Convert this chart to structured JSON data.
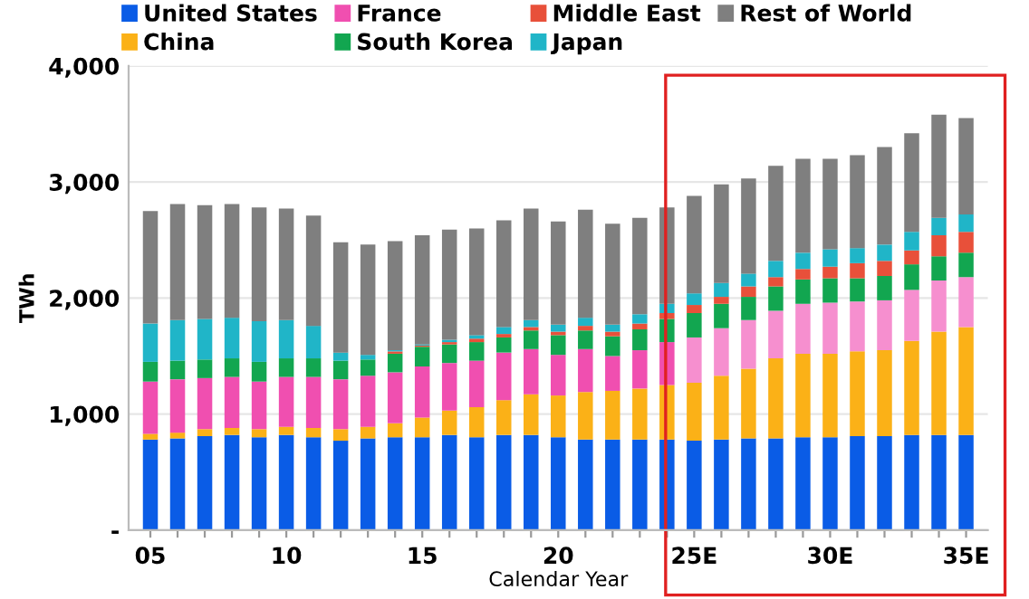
{
  "chart_data": {
    "type": "bar",
    "stacked": true,
    "xlabel": "Calendar Year",
    "ylabel": "TWh",
    "categories": [
      "05",
      null,
      null,
      null,
      null,
      "10",
      null,
      null,
      null,
      null,
      "15",
      null,
      null,
      null,
      null,
      "20",
      null,
      null,
      null,
      null,
      "25E",
      null,
      null,
      null,
      null,
      "30E",
      null,
      null,
      null,
      null,
      "35E"
    ],
    "series": [
      {
        "name": "United States",
        "color": "#0a5ce6",
        "values": [
          780,
          790,
          810,
          820,
          800,
          820,
          800,
          770,
          790,
          800,
          800,
          820,
          800,
          820,
          820,
          800,
          780,
          780,
          780,
          780,
          770,
          780,
          790,
          790,
          800,
          800,
          810,
          810,
          820,
          820,
          820
        ]
      },
      {
        "name": "China",
        "color": "#fbb117",
        "values": [
          50,
          50,
          60,
          60,
          70,
          70,
          80,
          100,
          100,
          120,
          170,
          210,
          260,
          300,
          350,
          360,
          410,
          420,
          440,
          470,
          500,
          550,
          600,
          690,
          720,
          720,
          730,
          740,
          810,
          890,
          930
        ]
      },
      {
        "name": "France",
        "color": "#f04fb0",
        "colors": [
          "#f04fb0",
          "#f04fb0",
          "#f04fb0",
          "#f04fb0",
          "#f04fb0",
          "#f04fb0",
          "#f04fb0",
          "#f04fb0",
          "#f04fb0",
          "#f04fb0",
          "#f04fb0",
          "#f04fb0",
          "#f04fb0",
          "#f04fb0",
          "#f04fb0",
          "#f04fb0",
          "#f04fb0",
          "#f04fb0",
          "#f04fb0",
          "#f04fb0",
          "#f68fcf",
          "#f68fcf",
          "#f68fcf",
          "#f68fcf",
          "#f68fcf",
          "#f68fcf",
          "#f68fcf",
          "#f68fcf",
          "#f68fcf",
          "#f68fcf",
          "#f68fcf"
        ],
        "values": [
          450,
          460,
          440,
          440,
          410,
          430,
          440,
          430,
          440,
          440,
          440,
          410,
          400,
          410,
          390,
          350,
          370,
          300,
          330,
          370,
          390,
          410,
          420,
          410,
          430,
          440,
          430,
          430,
          440,
          440,
          430
        ]
      },
      {
        "name": "South Korea",
        "color": "#12a650",
        "values": [
          170,
          160,
          160,
          160,
          170,
          160,
          160,
          160,
          140,
          160,
          170,
          160,
          160,
          130,
          160,
          170,
          160,
          170,
          180,
          200,
          210,
          210,
          200,
          210,
          210,
          210,
          200,
          210,
          220,
          210,
          210
        ]
      },
      {
        "name": "Middle East",
        "color": "#e8503a",
        "values": [
          0,
          0,
          0,
          0,
          0,
          0,
          0,
          0,
          0,
          20,
          10,
          20,
          30,
          30,
          30,
          30,
          40,
          40,
          50,
          50,
          70,
          60,
          90,
          80,
          90,
          100,
          130,
          130,
          120,
          180,
          180
        ]
      },
      {
        "name": "Japan",
        "color": "#20b5c8",
        "values": [
          330,
          350,
          350,
          350,
          350,
          330,
          280,
          70,
          40,
          10,
          10,
          20,
          30,
          60,
          60,
          60,
          70,
          60,
          80,
          80,
          100,
          120,
          110,
          140,
          140,
          150,
          130,
          140,
          160,
          150,
          150
        ]
      },
      {
        "name": "Rest of World",
        "color": "#7f7f7f",
        "values": [
          970,
          1000,
          980,
          980,
          980,
          960,
          950,
          950,
          950,
          940,
          940,
          950,
          920,
          920,
          960,
          890,
          930,
          870,
          830,
          830,
          840,
          850,
          820,
          820,
          810,
          780,
          800,
          840,
          850,
          890,
          830
        ]
      }
    ],
    "ylim": [
      0,
      4000
    ],
    "yticks": [
      {
        "value": 0,
        "label": "-"
      },
      {
        "value": 1000,
        "label": "1,000"
      },
      {
        "value": 2000,
        "label": "2,000"
      },
      {
        "value": 3000,
        "label": "3,000"
      },
      {
        "value": 4000,
        "label": "4,000"
      }
    ],
    "grid": "y",
    "legend": "top left"
  }
}
